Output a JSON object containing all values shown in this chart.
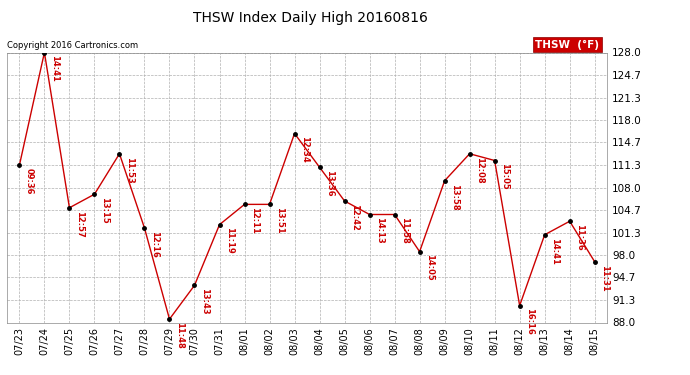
{
  "title": "THSW Index Daily High 20160816",
  "legend_label": "THSW  (°F)",
  "copyright": "Copyright 2016 Cartronics.com",
  "x_labels": [
    "07/23",
    "07/24",
    "07/25",
    "07/26",
    "07/27",
    "07/28",
    "07/29",
    "07/30",
    "07/31",
    "08/01",
    "08/02",
    "08/03",
    "08/04",
    "08/05",
    "08/06",
    "08/07",
    "08/08",
    "08/09",
    "08/10",
    "08/11",
    "08/12",
    "08/13",
    "08/14",
    "08/15"
  ],
  "y_values": [
    111.3,
    128.0,
    105.0,
    107.0,
    113.0,
    102.0,
    88.5,
    93.5,
    102.5,
    105.5,
    105.5,
    116.0,
    111.0,
    106.0,
    104.0,
    104.0,
    98.5,
    109.0,
    113.0,
    112.0,
    90.5,
    101.0,
    103.0,
    97.0
  ],
  "point_labels": [
    "09:36",
    "14:41",
    "12:57",
    "13:15",
    "11:53",
    "12:16",
    "11:48",
    "13:43",
    "11:19",
    "12:11",
    "13:51",
    "12:34",
    "13:36",
    "12:42",
    "14:13",
    "11:58",
    "14:05",
    "13:58",
    "12:08",
    "15:05",
    "16:16",
    "14:41",
    "11:36",
    "11:31"
  ],
  "line_color": "#cc0000",
  "marker_color": "#000000",
  "label_color": "#cc0000",
  "background_color": "#ffffff",
  "grid_color": "#b0b0b0",
  "ylim_min": 88.0,
  "ylim_max": 128.0,
  "yticks": [
    88.0,
    91.3,
    94.7,
    98.0,
    101.3,
    104.7,
    108.0,
    111.3,
    114.7,
    118.0,
    121.3,
    124.7,
    128.0
  ],
  "legend_bg": "#cc0000",
  "legend_text_color": "#ffffff",
  "fig_width": 6.9,
  "fig_height": 3.75,
  "dpi": 100
}
